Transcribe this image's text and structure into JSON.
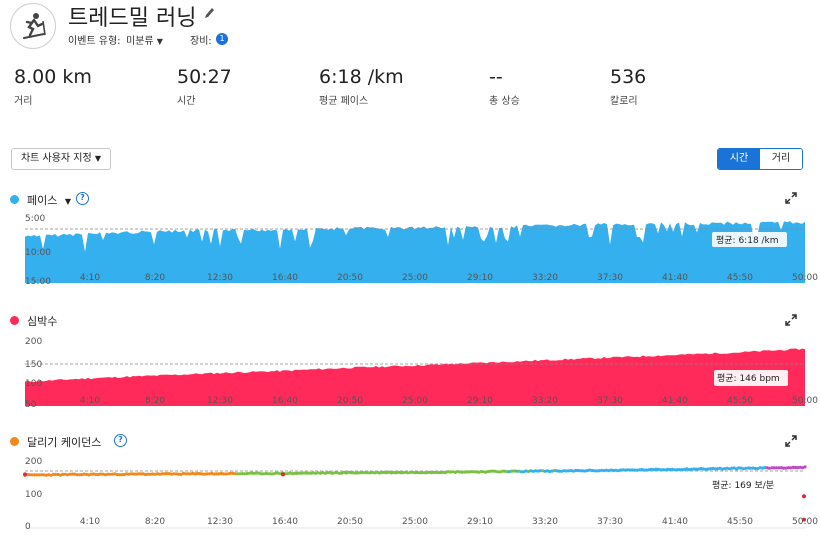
{
  "activity": {
    "title": "트레드밀 러닝",
    "icon": "treadmill-running-icon",
    "event_type_label": "이벤트 유형:",
    "event_type_value": "미분류",
    "gear_label": "장비:",
    "gear_count": "1"
  },
  "stats": [
    {
      "value": "8.00 km",
      "label": "거리"
    },
    {
      "value": "50:27",
      "label": "시간"
    },
    {
      "value": "6:18 /km",
      "label": "평균 페이스"
    },
    {
      "value": "--",
      "label": "총 상승"
    },
    {
      "value": "536",
      "label": "칼로리"
    }
  ],
  "toolbar": {
    "customize_label": "차트 사용자 지정",
    "toggle_time": "시간",
    "toggle_distance": "거리"
  },
  "x_ticks": [
    "4:10",
    "8:20",
    "12:30",
    "16:40",
    "20:50",
    "25:00",
    "29:10",
    "33:20",
    "37:30",
    "41:40",
    "45:50",
    "50:00"
  ],
  "charts": {
    "pace": {
      "title": "페이스",
      "color": "#35b0ee",
      "y_ticks": [
        "5:00",
        "10:00",
        "15:00"
      ],
      "avg_label": "평균: 6:18 /km"
    },
    "heart_rate": {
      "title": "심박수",
      "color": "#ff2a5a",
      "y_ticks": [
        "200",
        "150",
        "100",
        "50"
      ],
      "avg_label": "평균: 146 bpm"
    },
    "cadence": {
      "title": "달리기 케이던스",
      "color": "#f08a1c",
      "y_ticks": [
        "200",
        "100",
        "0"
      ],
      "avg_label": "평균: 169 보/분"
    }
  },
  "chart_data": [
    {
      "type": "area",
      "title": "페이스",
      "ylabel": "min/km",
      "x_unit": "elapsed time (mm:ss)",
      "ylim_inverted": [
        "15:00",
        "5:00"
      ],
      "x": [
        "0:00",
        "4:10",
        "8:20",
        "12:30",
        "16:40",
        "20:50",
        "25:00",
        "29:10",
        "33:20",
        "37:30",
        "41:40",
        "45:50",
        "50:00"
      ],
      "y_pace_minutes": [
        7.9,
        7.4,
        7.1,
        6.9,
        6.8,
        6.6,
        6.5,
        6.4,
        6.2,
        6.0,
        5.9,
        5.8,
        5.7
      ],
      "average": "6:18",
      "color": "#35b0ee"
    },
    {
      "type": "area",
      "title": "심박수",
      "ylabel": "bpm",
      "ylim": [
        50,
        200
      ],
      "x": [
        "0:00",
        "4:10",
        "8:20",
        "12:30",
        "16:40",
        "20:50",
        "25:00",
        "29:10",
        "33:20",
        "37:30",
        "41:40",
        "45:50",
        "50:00"
      ],
      "y": [
        105,
        113,
        119,
        125,
        130,
        137,
        142,
        148,
        154,
        160,
        166,
        172,
        180
      ],
      "average": 146,
      "color": "#ff2a5a"
    },
    {
      "type": "scatter",
      "title": "달리기 케이던스",
      "ylabel": "spm",
      "ylim": [
        0,
        200
      ],
      "x": [
        "0:00",
        "4:10",
        "8:20",
        "12:30",
        "16:40",
        "20:50",
        "25:00",
        "29:10",
        "33:20",
        "37:30",
        "41:40",
        "45:50",
        "50:00"
      ],
      "y": [
        158,
        160,
        161,
        162,
        163,
        165,
        166,
        168,
        170,
        172,
        175,
        178,
        181
      ],
      "average": 169,
      "zone_colors": [
        "#f08a1c",
        "#7ac143",
        "#35b0ee",
        "#c048c8",
        "#e8233c"
      ]
    }
  ]
}
